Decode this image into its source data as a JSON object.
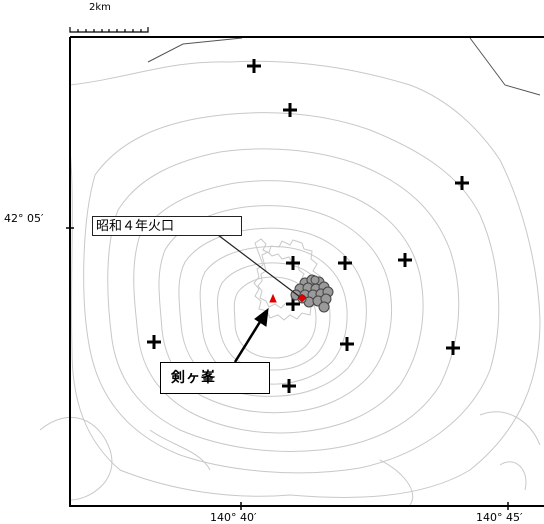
{
  "map": {
    "scale_label": "2km",
    "lat_label": "42° 05′",
    "lon_labels": [
      "140° 40′",
      "140° 45′"
    ],
    "crater_label": "昭和４年火口",
    "peak_label": "剣ヶ峯",
    "colors": {
      "frame": "#000000",
      "contour": "#c8c8c8",
      "coast": "#555555",
      "station_marker": "#000000",
      "quake_fill": "#9a9a9a",
      "quake_stroke": "#444444",
      "peak_marker": "#e00000",
      "crater_marker": "#e00000"
    },
    "icons": {
      "station": "plus-cross",
      "summit": "red-triangle",
      "crater": "red-diamond",
      "earthquake": "grey-circle"
    }
  }
}
